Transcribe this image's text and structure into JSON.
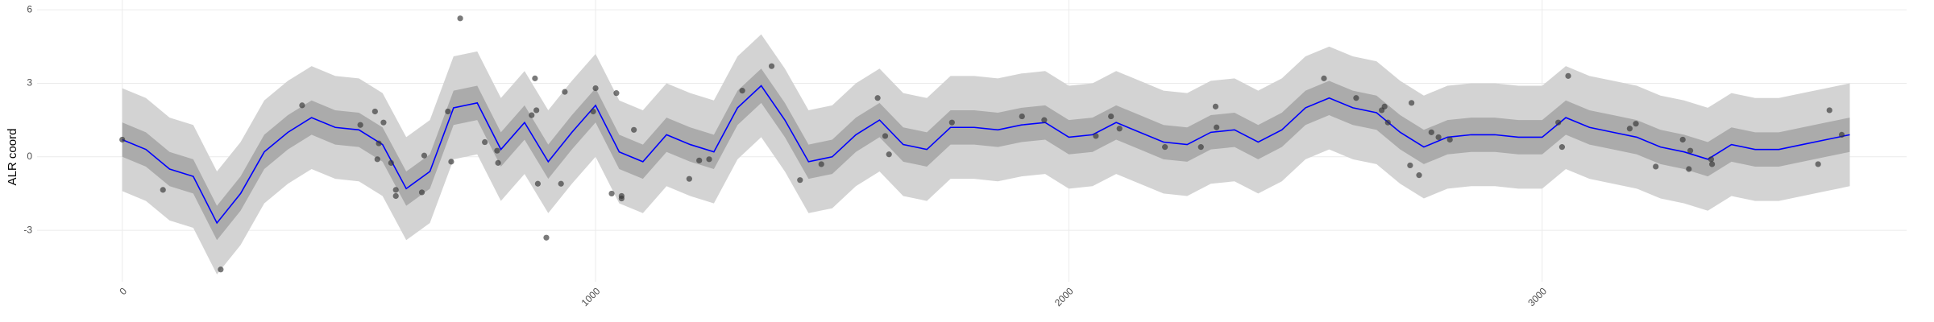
{
  "chart_data": {
    "type": "line",
    "y_label": "ALR coord",
    "xlim": [
      -180,
      3770
    ],
    "ylim": [
      -5.1,
      6.4
    ],
    "xticks": [
      0,
      1000,
      2000,
      3000
    ],
    "yticks": [
      -3,
      0,
      3,
      6
    ],
    "grid": true,
    "x": [
      0,
      50,
      100,
      150,
      200,
      250,
      300,
      350,
      400,
      450,
      500,
      550,
      600,
      650,
      700,
      750,
      800,
      850,
      900,
      950,
      1000,
      1050,
      1100,
      1150,
      1200,
      1250,
      1300,
      1350,
      1400,
      1450,
      1500,
      1550,
      1600,
      1650,
      1700,
      1750,
      1800,
      1850,
      1900,
      1950,
      2000,
      2050,
      2100,
      2150,
      2200,
      2250,
      2300,
      2350,
      2400,
      2450,
      2500,
      2550,
      2600,
      2650,
      2700,
      2750,
      2800,
      2850,
      2900,
      2950,
      3000,
      3050,
      3100,
      3150,
      3200,
      3250,
      3300,
      3350,
      3400,
      3450,
      3500,
      3550,
      3600,
      3650
    ],
    "bands": [
      {
        "color": "#d3d3d3",
        "lower": [
          -1.4,
          -1.8,
          -2.6,
          -2.9,
          -4.8,
          -3.6,
          -1.9,
          -1.1,
          -0.5,
          -0.9,
          -1.0,
          -1.6,
          -3.4,
          -2.7,
          -0.1,
          0.1,
          -1.8,
          -0.7,
          -2.3,
          -1.1,
          0.0,
          -1.9,
          -2.3,
          -1.2,
          -1.6,
          -1.9,
          -0.1,
          0.8,
          -0.6,
          -2.3,
          -2.1,
          -1.2,
          -0.6,
          -1.6,
          -1.8,
          -0.9,
          -0.9,
          -1.0,
          -0.8,
          -0.7,
          -1.3,
          -1.2,
          -0.7,
          -1.1,
          -1.5,
          -1.6,
          -1.1,
          -1.0,
          -1.5,
          -1.0,
          -0.1,
          0.3,
          -0.1,
          -0.3,
          -1.1,
          -1.7,
          -1.3,
          -1.2,
          -1.2,
          -1.3,
          -1.3,
          -0.5,
          -0.9,
          -1.1,
          -1.3,
          -1.7,
          -1.9,
          -2.2,
          -1.6,
          -1.8,
          -1.8,
          -1.6,
          -1.4,
          -1.2
        ],
        "upper": [
          2.8,
          2.4,
          1.6,
          1.3,
          -0.6,
          0.6,
          2.3,
          3.1,
          3.7,
          3.3,
          3.2,
          2.6,
          0.8,
          1.5,
          4.1,
          4.3,
          2.4,
          3.5,
          1.9,
          3.1,
          4.2,
          2.3,
          1.9,
          3.0,
          2.6,
          2.3,
          4.1,
          5.0,
          3.6,
          1.9,
          2.1,
          3.0,
          3.6,
          2.6,
          2.4,
          3.3,
          3.3,
          3.2,
          3.4,
          3.5,
          2.9,
          3.0,
          3.5,
          3.1,
          2.7,
          2.6,
          3.1,
          3.2,
          2.7,
          3.2,
          4.1,
          4.5,
          4.1,
          3.9,
          3.1,
          2.5,
          2.9,
          3.0,
          3.0,
          2.9,
          2.9,
          3.7,
          3.3,
          3.1,
          2.9,
          2.5,
          2.3,
          2.0,
          2.6,
          2.4,
          2.4,
          2.6,
          2.8,
          3.0
        ]
      },
      {
        "color": "#ababab",
        "lower": [
          0.0,
          -0.4,
          -1.2,
          -1.5,
          -3.4,
          -2.2,
          -0.5,
          0.3,
          0.9,
          0.5,
          0.4,
          -0.2,
          -2.0,
          -1.3,
          1.3,
          1.5,
          -0.4,
          0.7,
          -0.9,
          0.3,
          1.4,
          -0.5,
          -0.9,
          0.2,
          -0.2,
          -0.5,
          1.3,
          2.2,
          0.8,
          -0.9,
          -0.7,
          0.2,
          0.8,
          -0.2,
          -0.4,
          0.5,
          0.5,
          0.4,
          0.6,
          0.7,
          0.1,
          0.2,
          0.7,
          0.3,
          -0.1,
          -0.2,
          0.3,
          0.4,
          -0.1,
          0.4,
          1.3,
          1.7,
          1.3,
          1.1,
          0.3,
          -0.3,
          0.1,
          0.2,
          0.2,
          0.1,
          0.1,
          0.9,
          0.5,
          0.3,
          0.1,
          -0.3,
          -0.5,
          -0.8,
          -0.2,
          -0.4,
          -0.4,
          -0.2,
          0.0,
          0.2
        ],
        "upper": [
          1.4,
          1.0,
          0.2,
          -0.1,
          -2.0,
          -0.8,
          0.9,
          1.7,
          2.3,
          1.9,
          1.8,
          1.2,
          -0.6,
          0.1,
          2.7,
          2.9,
          1.0,
          2.1,
          0.5,
          1.7,
          2.8,
          0.9,
          0.5,
          1.6,
          1.2,
          0.9,
          2.7,
          3.6,
          2.2,
          0.5,
          0.7,
          1.6,
          2.2,
          1.2,
          1.0,
          1.9,
          1.9,
          1.8,
          2.0,
          2.1,
          1.5,
          1.6,
          2.1,
          1.7,
          1.3,
          1.2,
          1.7,
          1.8,
          1.3,
          1.8,
          2.7,
          3.1,
          2.7,
          2.5,
          1.7,
          1.1,
          1.5,
          1.6,
          1.6,
          1.5,
          1.5,
          2.3,
          1.9,
          1.7,
          1.5,
          1.1,
          0.9,
          0.6,
          1.2,
          1.0,
          1.0,
          1.2,
          1.4,
          1.6
        ]
      }
    ],
    "series": [
      {
        "color": "#0000ff",
        "values": [
          0.7,
          0.3,
          -0.5,
          -0.8,
          -2.7,
          -1.5,
          0.2,
          1.0,
          1.6,
          1.2,
          1.1,
          0.5,
          -1.3,
          -0.6,
          2.0,
          2.2,
          0.3,
          1.4,
          -0.2,
          1.0,
          2.1,
          0.2,
          -0.2,
          0.9,
          0.5,
          0.2,
          2.0,
          2.9,
          1.5,
          -0.2,
          0.0,
          0.9,
          1.5,
          0.5,
          0.3,
          1.2,
          1.2,
          1.1,
          1.3,
          1.4,
          0.8,
          0.9,
          1.4,
          1.0,
          0.6,
          0.5,
          1.0,
          1.1,
          0.6,
          1.1,
          2.0,
          2.4,
          2.0,
          1.8,
          1.0,
          0.4,
          0.8,
          0.9,
          0.9,
          0.8,
          0.8,
          1.6,
          1.2,
          1.0,
          0.8,
          0.4,
          0.2,
          -0.1,
          0.5,
          0.3,
          0.3,
          0.5,
          0.7,
          0.9
        ]
      }
    ],
    "points": {
      "color": "#333333",
      "x": [
        0,
        86,
        208,
        380,
        534,
        503,
        542,
        539,
        552,
        568,
        578,
        578,
        633,
        638,
        688,
        695,
        714,
        766,
        792,
        794,
        865,
        872,
        875,
        878,
        896,
        927,
        935,
        995,
        1000,
        1034,
        1044,
        1055,
        1055,
        1081,
        1198,
        1219,
        1240,
        1310,
        1372,
        1432,
        1477,
        1596,
        1612,
        1620,
        1753,
        1901,
        1948,
        2057,
        2089,
        2107,
        2203,
        2279,
        2310,
        2312,
        2539,
        2607,
        2661,
        2667,
        2674,
        2721,
        2724,
        2740,
        2766,
        2781,
        2805,
        3034,
        3042,
        3055,
        3185,
        3198,
        3240,
        3297,
        3310,
        3313,
        3357,
        3359,
        3583,
        3607,
        3633
      ],
      "y": [
        0.7,
        -1.35,
        -4.6,
        2.1,
        1.85,
        1.3,
        0.55,
        -0.1,
        1.4,
        -0.25,
        -1.35,
        -1.6,
        -1.45,
        0.05,
        1.85,
        -0.2,
        5.65,
        0.6,
        0.25,
        -0.25,
        1.7,
        3.2,
        1.9,
        -1.1,
        -3.3,
        -1.1,
        2.65,
        1.85,
        2.8,
        -1.5,
        2.6,
        -1.7,
        -1.6,
        1.1,
        -0.9,
        -0.15,
        -0.1,
        2.7,
        3.7,
        -0.95,
        -0.3,
        2.4,
        0.85,
        0.1,
        1.4,
        1.65,
        1.5,
        0.85,
        1.65,
        1.15,
        0.4,
        0.4,
        2.05,
        1.2,
        3.2,
        2.4,
        1.9,
        2.05,
        1.4,
        -0.35,
        2.2,
        -0.75,
        1.0,
        0.8,
        0.7,
        1.4,
        0.4,
        3.3,
        1.15,
        1.35,
        -0.4,
        0.7,
        -0.5,
        0.25,
        -0.1,
        -0.3,
        -0.3,
        1.9,
        0.9
      ]
    }
  }
}
